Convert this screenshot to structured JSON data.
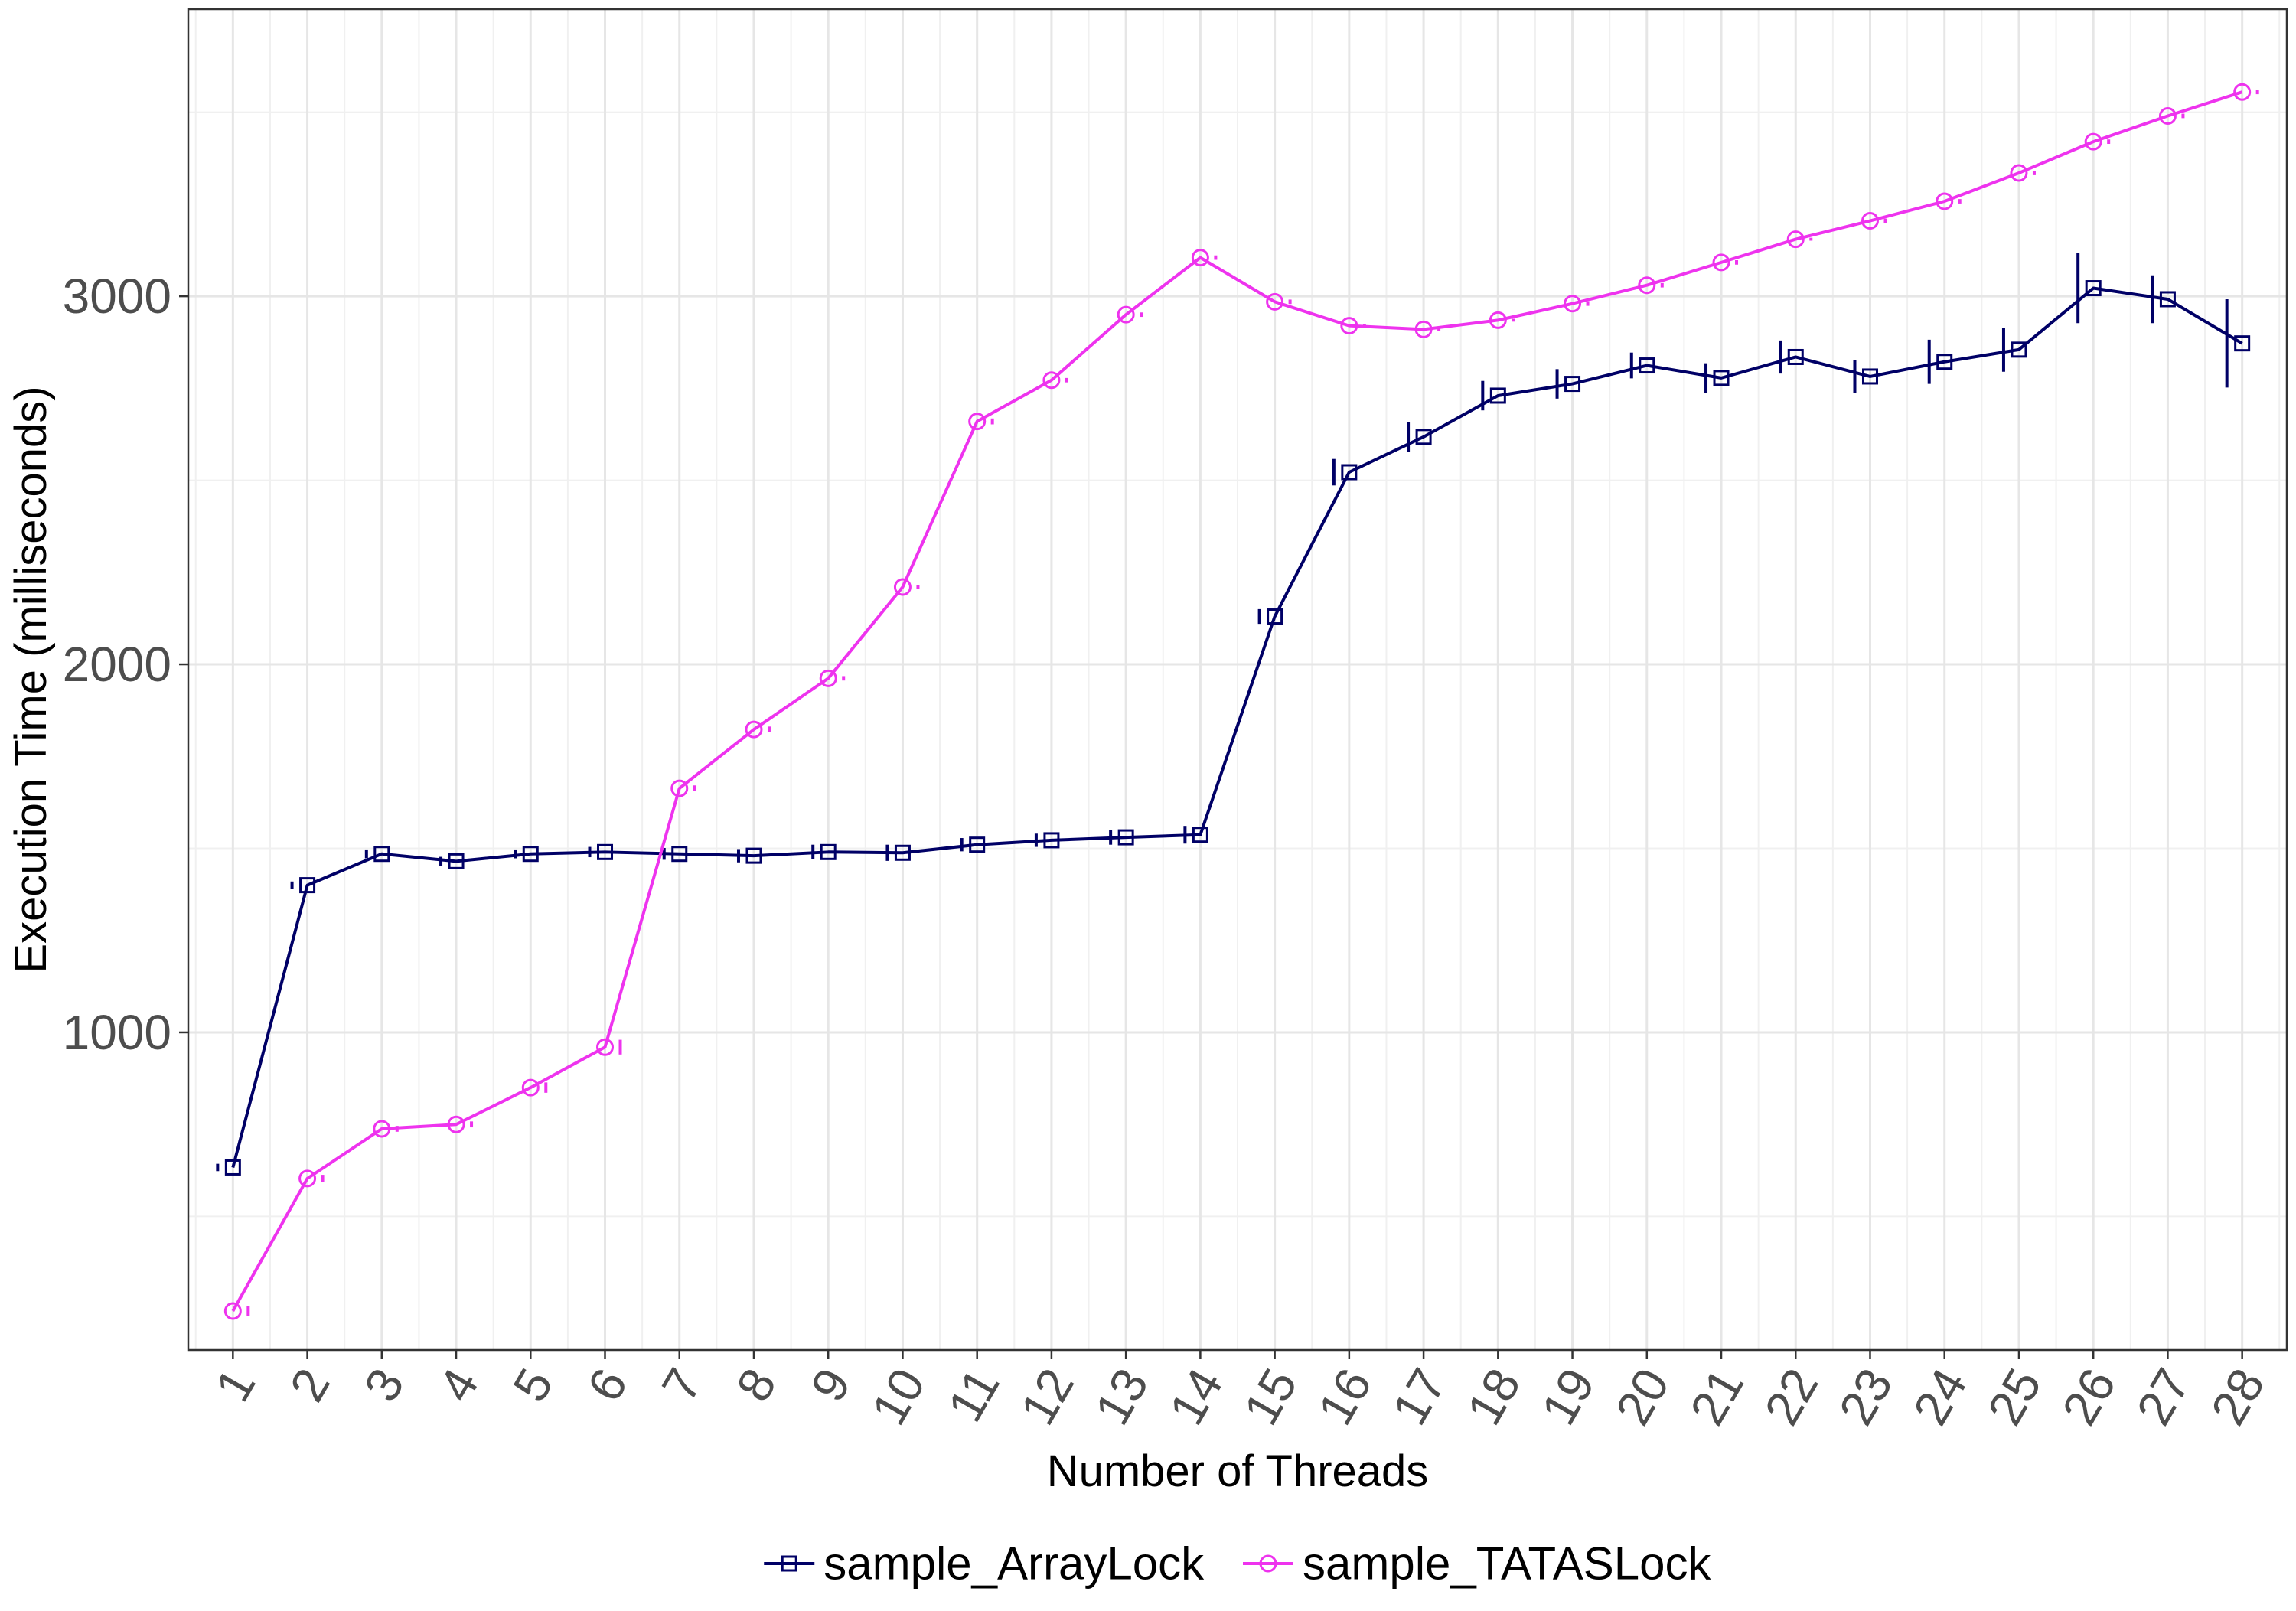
{
  "chart_data": {
    "type": "line",
    "xlabel": "Number of Threads",
    "ylabel": "Execution Time (milliseconds)",
    "x": [
      1,
      2,
      3,
      4,
      5,
      6,
      7,
      8,
      9,
      10,
      11,
      12,
      13,
      14,
      15,
      16,
      17,
      18,
      19,
      20,
      21,
      22,
      23,
      24,
      25,
      26,
      27,
      28
    ],
    "x_tick_labels": [
      "1",
      "2",
      "3",
      "4",
      "5",
      "6",
      "7",
      "8",
      "9",
      "10",
      "11",
      "12",
      "13",
      "14",
      "15",
      "16",
      "17",
      "18",
      "19",
      "20",
      "21",
      "22",
      "23",
      "24",
      "25",
      "26",
      "27",
      "28"
    ],
    "y_ticks": [
      1000,
      2000,
      3000
    ],
    "y_tick_labels": [
      "1000",
      "2000",
      "3000"
    ],
    "xlim": [
      0.4,
      28.6
    ],
    "ylim": [
      137,
      3780
    ],
    "grid": true,
    "legend_position": "bottom",
    "series": [
      {
        "name": "sample_ArrayLock",
        "color": "#000066",
        "marker": "square",
        "values": [
          633,
          1400,
          1485,
          1465,
          1485,
          1490,
          1485,
          1480,
          1490,
          1488,
          1510,
          1522,
          1530,
          1537,
          2130,
          2522,
          2618,
          2730,
          2762,
          2812,
          2778,
          2835,
          2782,
          2822,
          2855,
          3022,
          2992,
          2872
        ],
        "error": [
          10,
          10,
          12,
          12,
          12,
          14,
          16,
          18,
          20,
          22,
          18,
          18,
          20,
          24,
          20,
          36,
          40,
          40,
          40,
          35,
          40,
          45,
          45,
          60,
          60,
          95,
          65,
          120
        ]
      },
      {
        "name": "sample_TATASLock",
        "color": "#ee33ee",
        "marker": "circle",
        "values": [
          243,
          603,
          738,
          750,
          850,
          960,
          1663,
          1823,
          1962,
          2210,
          2660,
          2772,
          2950,
          3105,
          2985,
          2920,
          2910,
          2935,
          2980,
          3030,
          3092,
          3155,
          3205,
          3258,
          3335,
          3420,
          3490,
          3555
        ],
        "error": [
          14,
          10,
          8,
          8,
          14,
          20,
          8,
          8,
          6,
          6,
          8,
          6,
          6,
          6,
          6,
          4,
          4,
          4,
          6,
          6,
          6,
          4,
          6,
          6,
          6,
          6,
          6,
          6
        ]
      }
    ]
  }
}
